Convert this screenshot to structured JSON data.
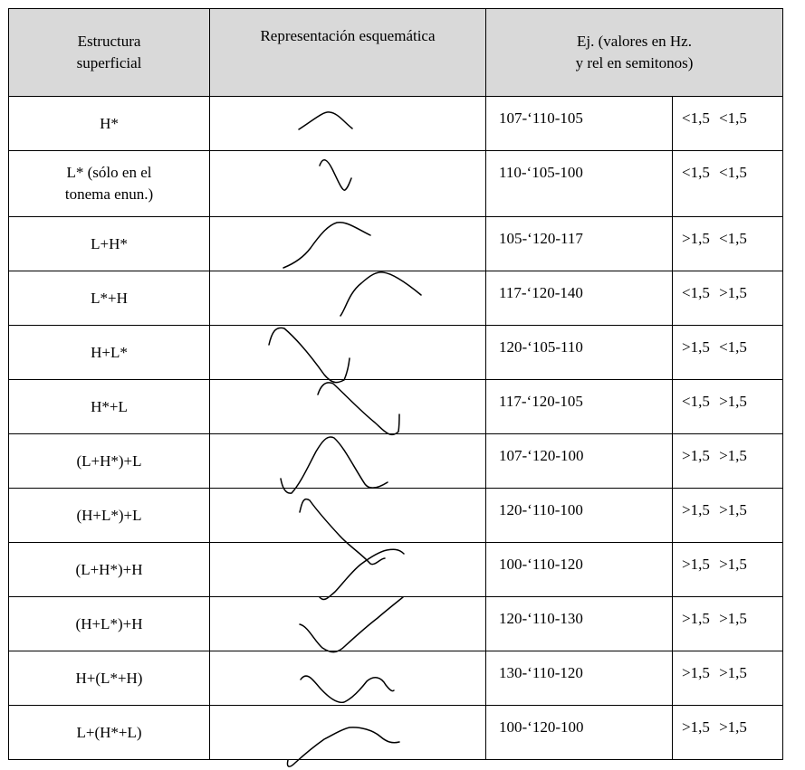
{
  "header": {
    "col1": "Estructura\nsuperficial",
    "col2": "Representación esquemática",
    "col3": "Ej. (valores en Hz.\ny rel en semitonos)"
  },
  "rows": [
    {
      "structure": "H*",
      "example": "107-‘110-105",
      "rel": "<1,5 <1,5"
    },
    {
      "structure": "L* (sólo en el\ntonema enun.)",
      "example": "110-‘105-100",
      "rel": "<1,5 <1,5"
    },
    {
      "structure": "L+H*",
      "example": "105-‘120-117",
      "rel": ">1,5 <1,5"
    },
    {
      "structure": "L*+H",
      "example": "117-‘120-140",
      "rel": "<1,5 >1,5"
    },
    {
      "structure": "H+L*",
      "example": "120-‘105-110",
      "rel": ">1,5 <1,5"
    },
    {
      "structure": "H*+L",
      "example": "117-‘120-105",
      "rel": "<1,5 >1,5"
    },
    {
      "structure": "(L+H*)+L",
      "example": "107-‘120-100",
      "rel": ">1,5 >1,5"
    },
    {
      "structure": "(H+L*)+L",
      "example": "120-‘110-100",
      "rel": ">1,5 >1,5"
    },
    {
      "structure": "(L+H*)+H",
      "example": "100-‘110-120",
      "rel": ">1,5 >1,5"
    },
    {
      "structure": "(H+L*)+H",
      "example": "120-‘110-130",
      "rel": ">1,5 >1,5"
    },
    {
      "structure": "H+(L*+H)",
      "example": "130-‘110-120",
      "rel": ">1,5 >1,5"
    },
    {
      "structure": "L+(H*+L)",
      "example": "100-‘120-100",
      "rel": ">1,5 >1,5"
    }
  ]
}
